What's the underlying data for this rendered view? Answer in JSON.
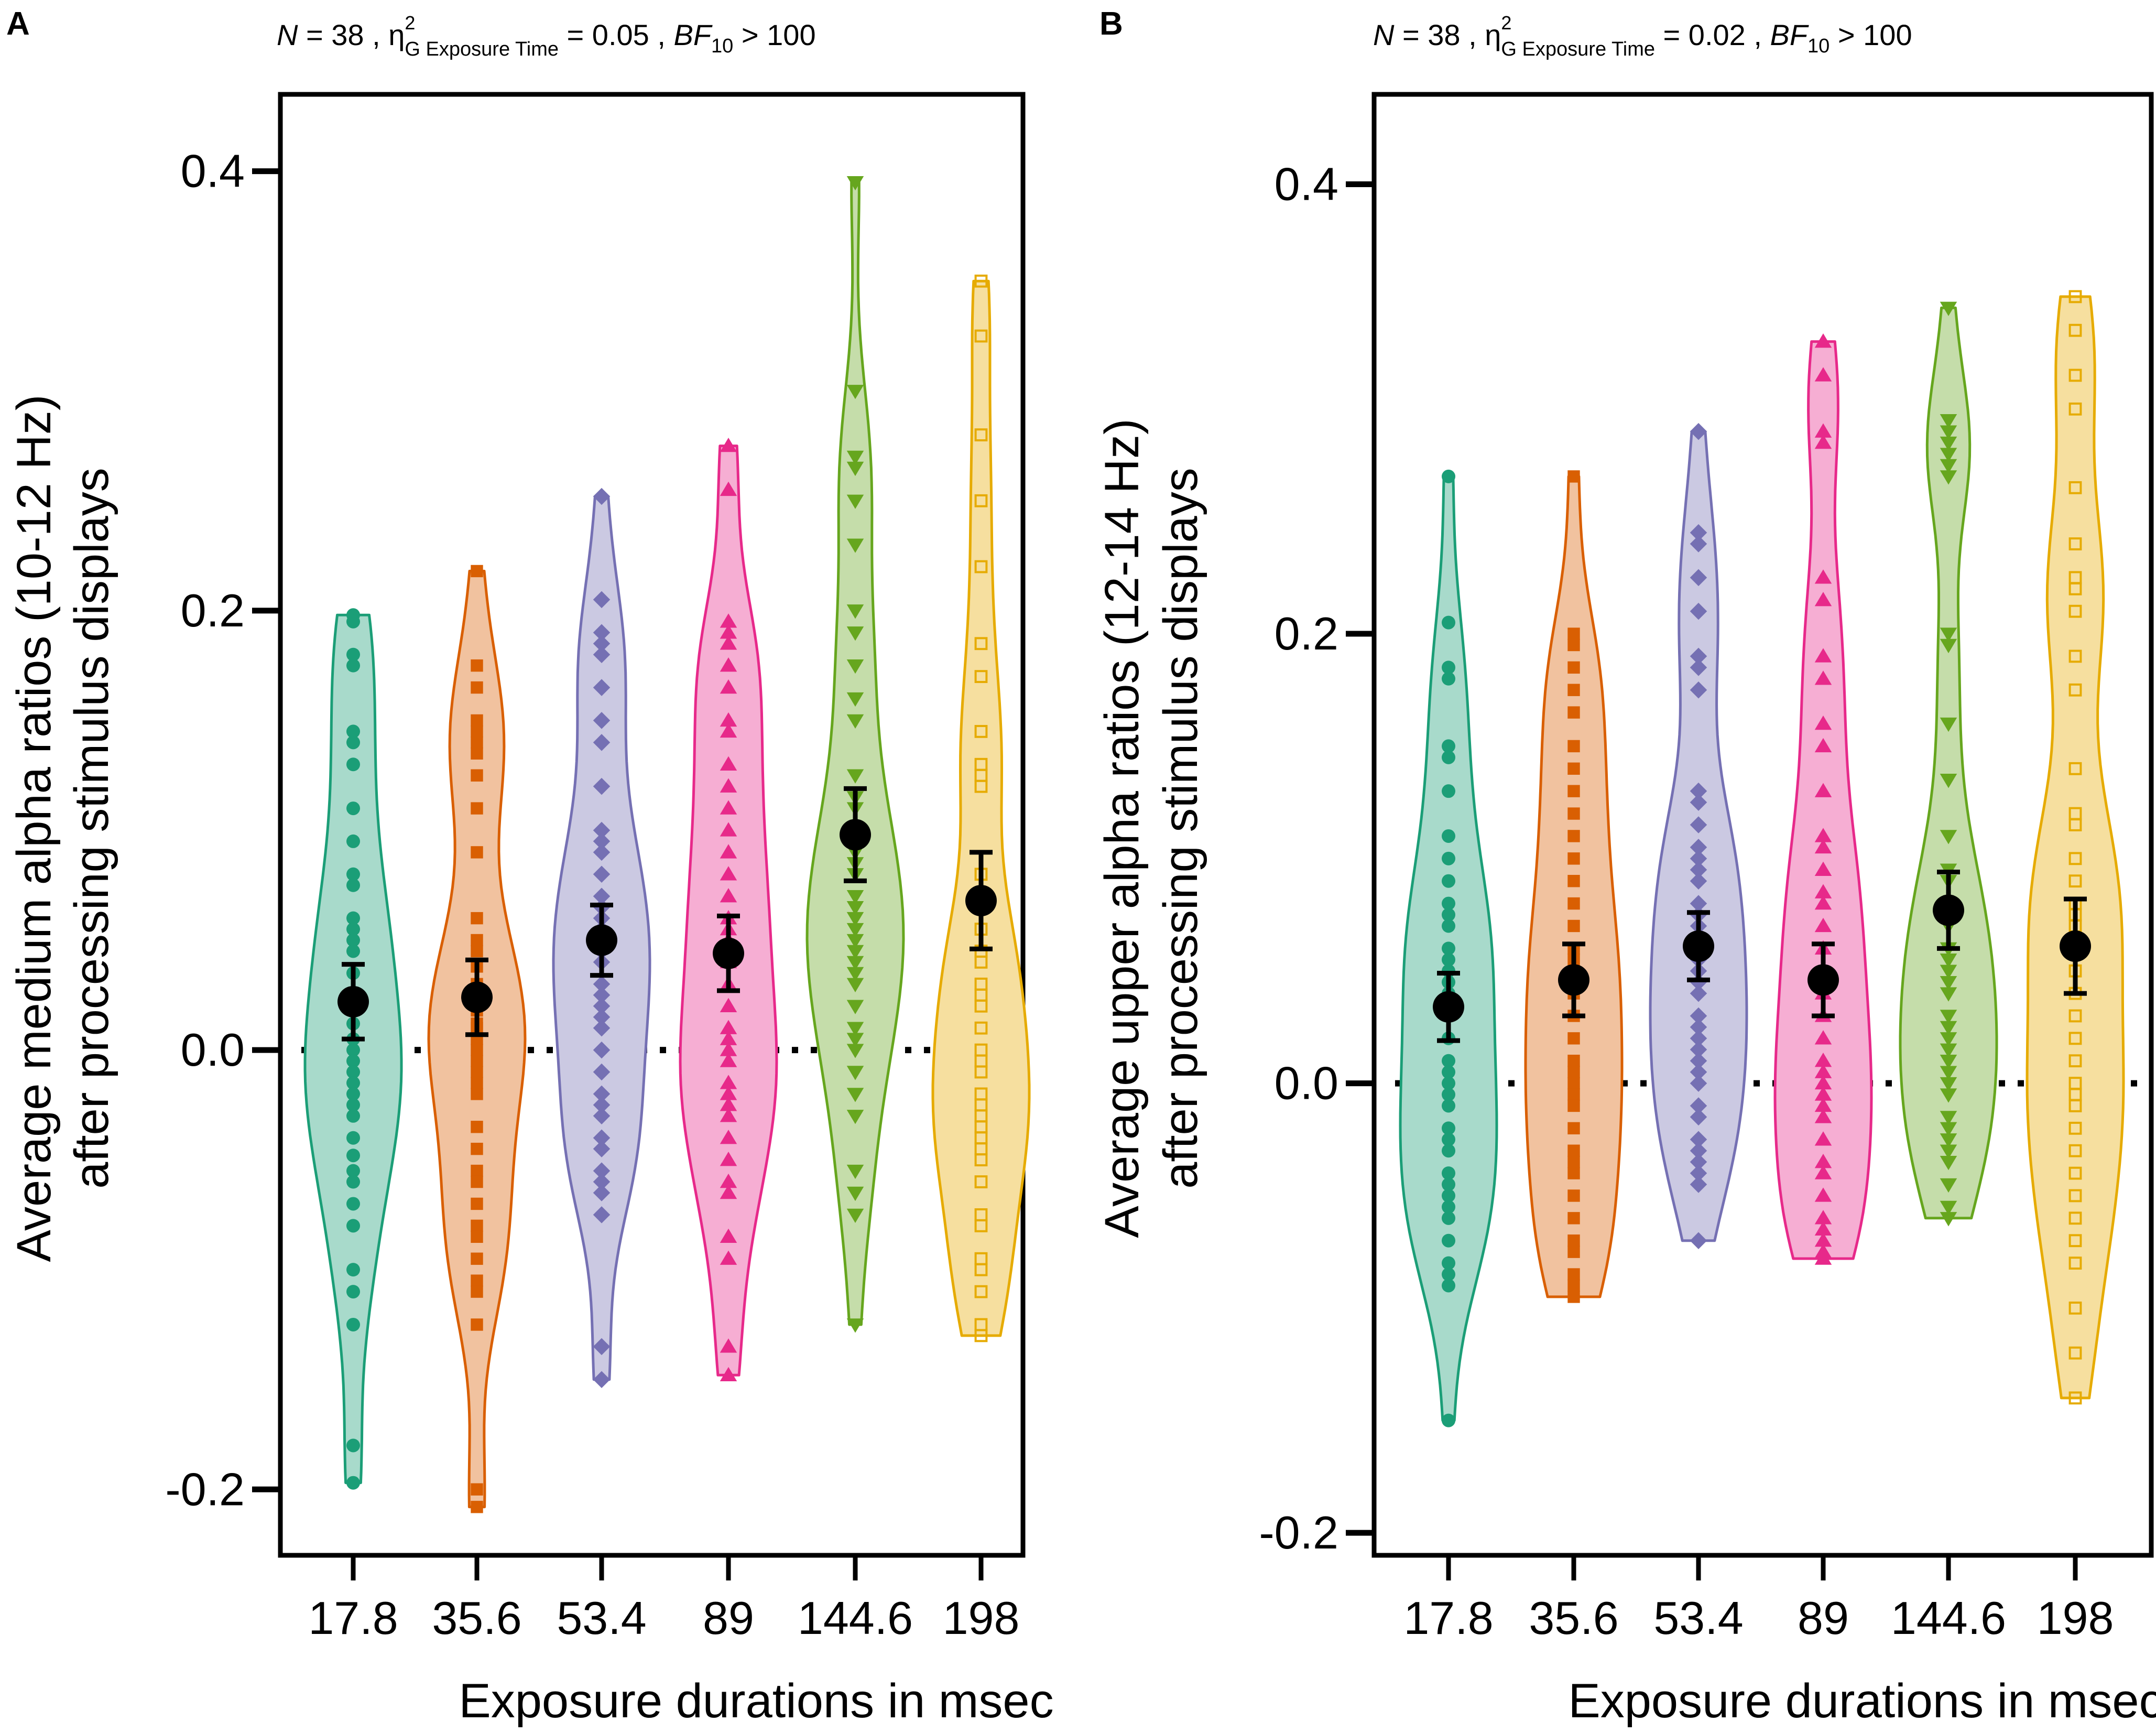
{
  "figure": {
    "colors": [
      "#1b9e77",
      "#d95f02",
      "#7570b3",
      "#e7298a",
      "#66a61e",
      "#e6ab02"
    ],
    "markers": [
      "circle",
      "square",
      "diamond",
      "triangle-up",
      "triangle-down",
      "square-open"
    ]
  },
  "chart_data": [
    {
      "type": "violin",
      "panel": "A",
      "subtitle": {
        "n_label": "N",
        "n_value": " = 38 , η",
        "eta_sup": "2",
        "eta_sub": "G Exposure Time",
        "eta_value": " = 0.05 , ",
        "bf_label": "BF",
        "bf_sub": "10",
        "bf_value": " > 100"
      },
      "ylabel_line1": "Average medium alpha ratios (10-12 Hz)",
      "ylabel_line2": "after processing stimulus displays",
      "xlabel": "Exposure durations in msec",
      "categories": [
        "17.8",
        "35.6",
        "53.4",
        "89",
        "144.6",
        "198"
      ],
      "ylim": [
        -0.23,
        0.435
      ],
      "yticks": [
        -0.2,
        0.0,
        0.2,
        0.4
      ],
      "ytick_labels": [
        "-0.2",
        "0.0",
        "0.2",
        "0.4"
      ],
      "reference_line": 0.0,
      "means": [
        0.022,
        0.024,
        0.05,
        0.044,
        0.098,
        0.068
      ],
      "errors": [
        0.017,
        0.017,
        0.016,
        0.017,
        0.021,
        0.022
      ],
      "series": [
        {
          "name": "17.8",
          "values": [
            0.198,
            0.195,
            0.18,
            0.175,
            0.145,
            0.14,
            0.13,
            0.11,
            0.095,
            0.08,
            0.075,
            0.06,
            0.055,
            0.05,
            0.045,
            0.035,
            0.025,
            0.018,
            0.012,
            0.005,
            0.0,
            -0.005,
            -0.01,
            -0.015,
            -0.02,
            -0.025,
            -0.03,
            -0.04,
            -0.048,
            -0.055,
            -0.06,
            -0.07,
            -0.08,
            -0.1,
            -0.11,
            -0.125,
            -0.18,
            -0.197
          ]
        },
        {
          "name": "35.6",
          "values": [
            0.218,
            0.175,
            0.165,
            0.15,
            0.145,
            0.14,
            0.135,
            0.125,
            0.11,
            0.09,
            0.06,
            0.05,
            0.045,
            0.038,
            0.03,
            0.022,
            0.018,
            0.012,
            0.01,
            0.005,
            0.0,
            -0.005,
            -0.01,
            -0.015,
            -0.02,
            -0.035,
            -0.045,
            -0.055,
            -0.06,
            -0.07,
            -0.08,
            -0.085,
            -0.095,
            -0.105,
            -0.11,
            -0.125,
            -0.2,
            -0.208
          ]
        },
        {
          "name": "53.4",
          "values": [
            0.252,
            0.205,
            0.19,
            0.185,
            0.18,
            0.165,
            0.15,
            0.14,
            0.12,
            0.1,
            0.095,
            0.09,
            0.08,
            0.07,
            0.065,
            0.06,
            0.055,
            0.05,
            0.045,
            0.04,
            0.03,
            0.025,
            0.02,
            0.015,
            0.01,
            0.0,
            -0.01,
            -0.02,
            -0.025,
            -0.03,
            -0.04,
            -0.045,
            -0.055,
            -0.065,
            -0.075,
            -0.135,
            -0.15,
            -0.06
          ]
        },
        {
          "name": "89",
          "values": [
            0.275,
            0.255,
            0.195,
            0.19,
            0.185,
            0.175,
            0.165,
            0.15,
            0.145,
            0.13,
            0.12,
            0.11,
            0.1,
            0.09,
            0.08,
            0.07,
            0.06,
            0.055,
            0.05,
            0.04,
            0.03,
            0.02,
            0.01,
            0.005,
            0.0,
            -0.005,
            -0.015,
            -0.02,
            -0.03,
            -0.04,
            -0.05,
            -0.06,
            -0.065,
            -0.085,
            -0.095,
            -0.135,
            -0.148,
            -0.025
          ]
        },
        {
          "name": "144.6",
          "values": [
            0.395,
            0.3,
            0.27,
            0.265,
            0.25,
            0.23,
            0.2,
            0.19,
            0.175,
            0.16,
            0.15,
            0.125,
            0.115,
            0.11,
            0.1,
            0.09,
            0.085,
            0.08,
            0.07,
            0.06,
            0.055,
            0.05,
            0.04,
            0.035,
            0.03,
            0.02,
            0.01,
            0.005,
            0.0,
            -0.01,
            -0.02,
            -0.03,
            -0.055,
            -0.065,
            -0.075,
            -0.125,
            0.045,
            0.065
          ]
        },
        {
          "name": "198",
          "values": [
            0.35,
            0.325,
            0.28,
            0.25,
            0.22,
            0.185,
            0.17,
            0.145,
            0.13,
            0.125,
            0.12,
            0.08,
            0.065,
            0.055,
            0.045,
            0.04,
            0.03,
            0.025,
            0.02,
            0.01,
            0.0,
            -0.005,
            -0.01,
            -0.02,
            -0.025,
            -0.03,
            -0.035,
            -0.04,
            -0.045,
            -0.05,
            -0.06,
            -0.075,
            -0.08,
            -0.095,
            -0.1,
            -0.11,
            -0.125,
            -0.13
          ]
        }
      ]
    },
    {
      "type": "violin",
      "panel": "B",
      "subtitle": {
        "n_label": "N",
        "n_value": " = 38 , η",
        "eta_sup": "2",
        "eta_sub": "G Exposure Time",
        "eta_value": " = 0.02 , ",
        "bf_label": "BF",
        "bf_sub": "10",
        "bf_value": " > 100"
      },
      "ylabel_line1": "Average upper alpha ratios (12-14 Hz)",
      "ylabel_line2": "after processing stimulus displays",
      "xlabel": "Exposure durations in msec",
      "categories": [
        "17.8",
        "35.6",
        "53.4",
        "89",
        "144.6",
        "198"
      ],
      "ylim": [
        -0.21,
        0.44
      ],
      "yticks": [
        -0.2,
        0.0,
        0.2,
        0.4
      ],
      "ytick_labels": [
        "-0.2",
        "0.0",
        "0.2",
        "0.4"
      ],
      "reference_line": 0.0,
      "means": [
        0.034,
        0.046,
        0.061,
        0.046,
        0.077,
        0.061
      ],
      "errors": [
        0.015,
        0.016,
        0.015,
        0.016,
        0.017,
        0.021
      ],
      "series": [
        {
          "name": "17.8",
          "values": [
            0.27,
            0.205,
            0.185,
            0.18,
            0.15,
            0.145,
            0.13,
            0.11,
            0.1,
            0.09,
            0.08,
            0.075,
            0.07,
            0.06,
            0.055,
            0.05,
            0.045,
            0.04,
            0.03,
            0.02,
            0.01,
            0.005,
            0.0,
            -0.005,
            -0.01,
            -0.02,
            -0.025,
            -0.03,
            -0.04,
            -0.045,
            -0.05,
            -0.055,
            -0.06,
            -0.07,
            -0.08,
            -0.085,
            -0.09,
            -0.15
          ]
        },
        {
          "name": "35.6",
          "values": [
            0.27,
            0.2,
            0.195,
            0.185,
            0.175,
            0.165,
            0.15,
            0.14,
            0.13,
            0.12,
            0.11,
            0.1,
            0.09,
            0.08,
            0.07,
            0.06,
            0.055,
            0.05,
            0.045,
            0.04,
            0.03,
            0.02,
            0.01,
            0.005,
            0.0,
            -0.005,
            -0.01,
            -0.02,
            -0.03,
            -0.035,
            -0.04,
            -0.05,
            -0.06,
            -0.07,
            -0.075,
            -0.085,
            -0.09,
            -0.095
          ]
        },
        {
          "name": "53.4",
          "values": [
            0.29,
            0.245,
            0.24,
            0.225,
            0.21,
            0.19,
            0.185,
            0.175,
            0.13,
            0.125,
            0.115,
            0.105,
            0.1,
            0.095,
            0.09,
            0.08,
            0.075,
            0.07,
            0.06,
            0.055,
            0.05,
            0.045,
            0.04,
            0.03,
            0.025,
            0.02,
            0.015,
            0.01,
            0.005,
            0.0,
            -0.01,
            -0.015,
            -0.025,
            -0.03,
            -0.035,
            -0.04,
            -0.045,
            -0.07
          ]
        },
        {
          "name": "89",
          "values": [
            0.33,
            0.315,
            0.29,
            0.285,
            0.225,
            0.215,
            0.19,
            0.18,
            0.16,
            0.15,
            0.13,
            0.11,
            0.105,
            0.095,
            0.085,
            0.08,
            0.07,
            0.06,
            0.05,
            0.045,
            0.04,
            0.03,
            0.02,
            0.01,
            0.005,
            0.0,
            -0.005,
            -0.01,
            -0.015,
            -0.025,
            -0.035,
            -0.04,
            -0.05,
            -0.06,
            -0.065,
            -0.07,
            -0.075,
            -0.078
          ]
        },
        {
          "name": "144.6",
          "values": [
            0.345,
            0.295,
            0.29,
            0.285,
            0.28,
            0.275,
            0.27,
            0.2,
            0.195,
            0.16,
            0.135,
            0.11,
            0.095,
            0.09,
            0.08,
            0.075,
            0.07,
            0.06,
            0.055,
            0.05,
            0.045,
            0.04,
            0.03,
            0.025,
            0.02,
            0.015,
            0.01,
            0.005,
            0.0,
            -0.005,
            -0.015,
            -0.02,
            -0.025,
            -0.03,
            -0.035,
            -0.045,
            -0.055,
            -0.06
          ]
        },
        {
          "name": "198",
          "values": [
            0.35,
            0.335,
            0.315,
            0.3,
            0.265,
            0.24,
            0.225,
            0.22,
            0.21,
            0.19,
            0.175,
            0.14,
            0.12,
            0.115,
            0.1,
            0.09,
            0.08,
            0.075,
            0.07,
            0.06,
            0.05,
            0.04,
            0.03,
            0.02,
            0.01,
            0.0,
            -0.005,
            -0.01,
            -0.02,
            -0.03,
            -0.04,
            -0.05,
            -0.06,
            -0.07,
            -0.08,
            -0.1,
            -0.12,
            -0.14
          ]
        }
      ]
    }
  ]
}
